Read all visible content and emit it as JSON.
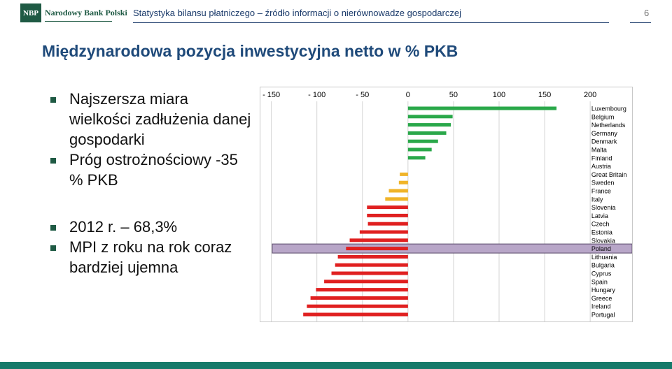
{
  "header": {
    "logo_abbr": "NBP",
    "logo_name": "Narodowy Bank Polski",
    "title": "Statystyka bilansu płatniczego – źródło informacji o nierównowadze gospodarczej",
    "page_number": "6"
  },
  "slide": {
    "title": "Międzynarodowa pozycja inwestycyjna netto w % PKB",
    "bullets": [
      "Najszersza miara wielkości zadłużenia danej gospodarki",
      "Próg ostrożnościowy -35 %  PKB",
      "2012 r. – 68,3%",
      "MPI z roku na rok coraz bardziej ujemna"
    ]
  },
  "colors": {
    "brand_green": "#1f5a44",
    "positive": "#2aa84a",
    "near_zero": "#f0b429",
    "negative": "#e02020",
    "poland_highlight": "#b8a6c8"
  },
  "chart_data": {
    "type": "bar",
    "orientation": "horizontal",
    "x_tick_labels": [
      "- 150",
      "- 100",
      "- 50",
      "0",
      "50",
      "100",
      "150",
      "200"
    ],
    "x_ticks": [
      -150,
      -100,
      -50,
      0,
      50,
      100,
      150,
      200
    ],
    "xlim": [
      -162,
      246
    ],
    "highlight": "Poland",
    "categories": [
      "Luxembourg",
      "Belgium",
      "Netherlands",
      "Germany",
      "Denmark",
      "Malta",
      "Finland",
      "Austria",
      "Great Britain",
      "Sweden",
      "France",
      "Italy",
      "Slovenia",
      "Latvia",
      "Czech",
      "Estonia",
      "Slovakia",
      "Poland",
      "Lithuania",
      "Bulgaria",
      "Cyprus",
      "Spain",
      "Hungary",
      "Greece",
      "Ireland",
      "Portugal"
    ],
    "values": [
      163,
      49,
      47,
      42,
      33,
      26,
      19,
      0,
      -9,
      -10,
      -21,
      -25,
      -45,
      -45,
      -44,
      -53,
      -64,
      -68,
      -77,
      -80,
      -84,
      -92,
      -101,
      -107,
      -111,
      -115
    ],
    "groups": [
      "positive",
      "positive",
      "positive",
      "positive",
      "positive",
      "positive",
      "positive",
      "near_zero",
      "near_zero",
      "near_zero",
      "near_zero",
      "near_zero",
      "negative",
      "negative",
      "negative",
      "negative",
      "negative",
      "negative",
      "negative",
      "negative",
      "negative",
      "negative",
      "negative",
      "negative",
      "negative",
      "negative"
    ]
  }
}
